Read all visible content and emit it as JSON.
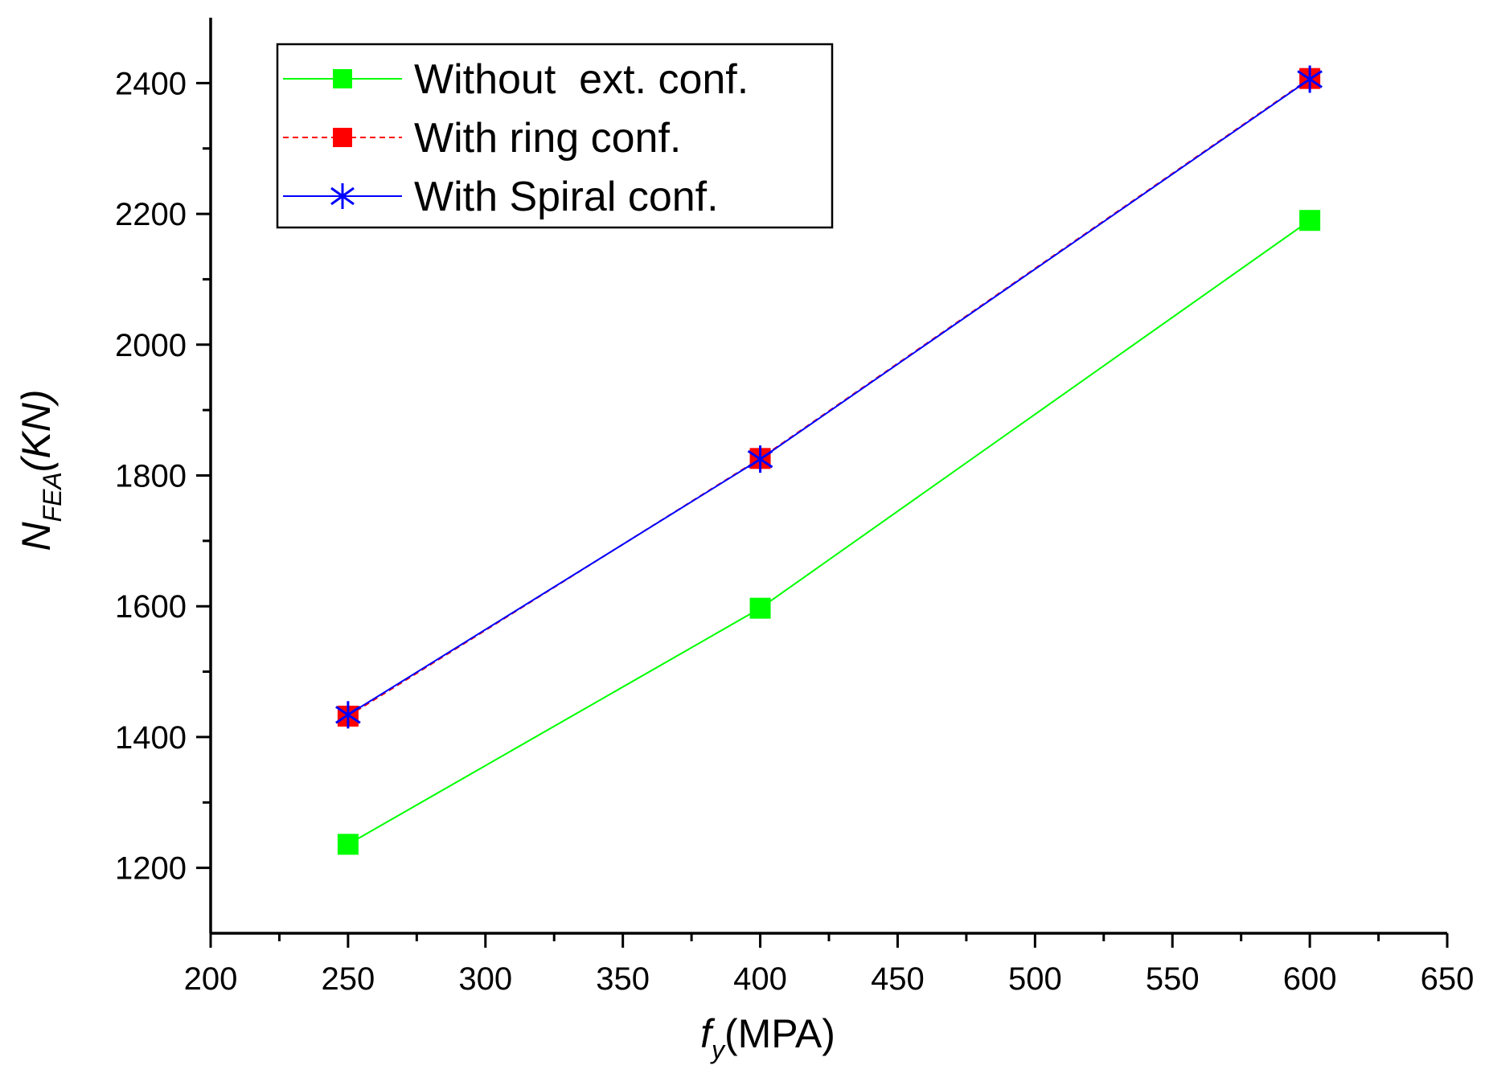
{
  "chart_data": {
    "type": "line",
    "title": "",
    "xlabel": {
      "main": "f",
      "sub": "y",
      "unit": "(MPA)"
    },
    "ylabel": {
      "main": "N",
      "sub": "FEA",
      "unit": "(KN)"
    },
    "xlim": [
      200,
      650
    ],
    "ylim": [
      1100,
      2500
    ],
    "xticks": [
      200,
      250,
      300,
      350,
      400,
      450,
      500,
      550,
      600,
      650
    ],
    "yticks": [
      1200,
      1400,
      1600,
      1800,
      2000,
      2200,
      2400
    ],
    "grid": false,
    "legend_position": "top-left",
    "series": [
      {
        "name": "Without  ext. conf.",
        "color": "#00ff00",
        "line": "solid",
        "marker": "square",
        "x": [
          250,
          400,
          600
        ],
        "y": [
          1236,
          1597,
          2190
        ]
      },
      {
        "name": "With ring conf.",
        "color": "#ff0000",
        "line": "dashed",
        "marker": "square",
        "x": [
          250,
          400,
          600
        ],
        "y": [
          1432,
          1826,
          2407
        ]
      },
      {
        "name": "With Spiral conf.",
        "color": "#0000ff",
        "line": "solid",
        "marker": "asterisk",
        "x": [
          250,
          400,
          600
        ],
        "y": [
          1434,
          1825,
          2406
        ]
      }
    ]
  }
}
